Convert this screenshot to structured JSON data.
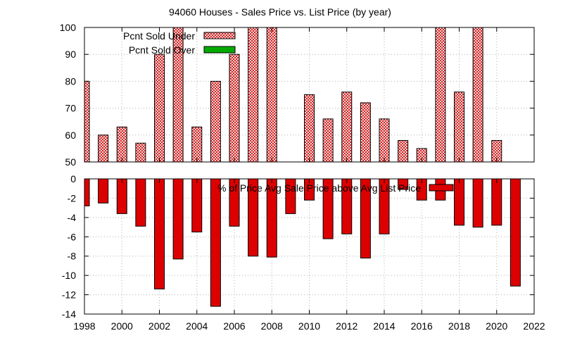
{
  "chart_data": [
    {
      "type": "bar",
      "title": "94060 Houses - Sales Price vs. List Price (by year)",
      "xlim": [
        1998,
        2022
      ],
      "ylim": [
        50,
        100
      ],
      "yticks": [
        50,
        60,
        70,
        80,
        90,
        100
      ],
      "grid": true,
      "legend_position": "top-left",
      "series": [
        {
          "name": "Pcnt Sold Under",
          "color": "#cc0000",
          "pattern": "crosshatch",
          "x": [
            1998,
            1999,
            2000,
            2001,
            2002,
            2003,
            2004,
            2005,
            2006,
            2007,
            2008,
            2009,
            2010,
            2011,
            2012,
            2013,
            2014,
            2015,
            2016,
            2017,
            2018,
            2019,
            2020,
            2021
          ],
          "values": [
            80,
            60,
            63,
            57,
            90,
            100,
            63,
            80,
            90,
            100,
            100,
            null,
            75,
            66,
            76,
            72,
            66,
            58,
            55,
            100,
            76,
            100,
            58,
            null
          ]
        },
        {
          "name": "Pcnt Sold Over",
          "color": "#00aa00",
          "x": [],
          "values": []
        }
      ]
    },
    {
      "type": "bar",
      "xlim": [
        1998,
        2022
      ],
      "ylim": [
        -14,
        0
      ],
      "yticks": [
        0,
        -2,
        -4,
        -6,
        -8,
        -10,
        -12,
        -14
      ],
      "xticks": [
        1998,
        2000,
        2002,
        2004,
        2006,
        2008,
        2010,
        2012,
        2014,
        2016,
        2018,
        2020,
        2022
      ],
      "grid": true,
      "legend_position": "top-center",
      "series": [
        {
          "name": "% of Price Avg Sale Price above Avg List Price",
          "color": "#dd0000",
          "x": [
            1998,
            1999,
            2000,
            2001,
            2002,
            2003,
            2004,
            2005,
            2006,
            2007,
            2008,
            2009,
            2010,
            2011,
            2012,
            2013,
            2014,
            2015,
            2016,
            2017,
            2018,
            2019,
            2020,
            2021
          ],
          "values": [
            -2.8,
            -2.5,
            -3.6,
            -4.9,
            -11.4,
            -8.3,
            -5.5,
            -13.2,
            -4.9,
            -8.0,
            -8.1,
            -3.6,
            -2.2,
            -6.2,
            -5.7,
            -8.2,
            -5.7,
            -1.1,
            -2.2,
            -2.2,
            -4.8,
            -5.0,
            -4.8,
            -11.1
          ]
        }
      ]
    }
  ]
}
